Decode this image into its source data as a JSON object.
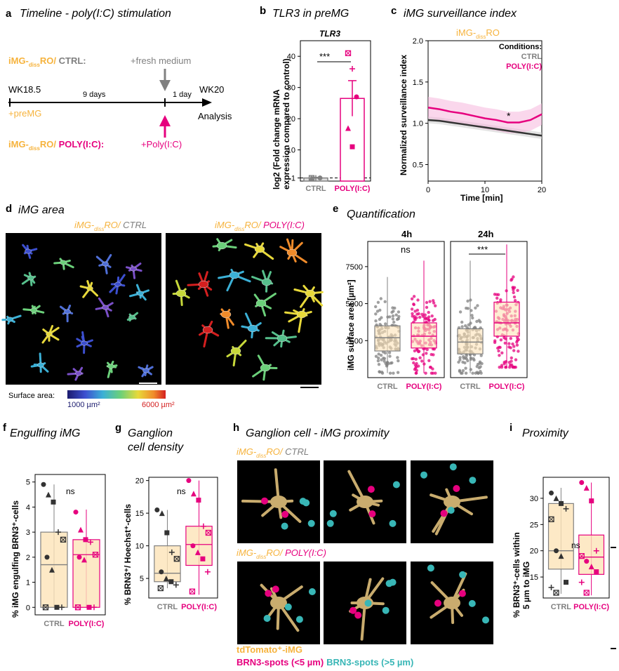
{
  "panels": {
    "a": {
      "letter": "a",
      "title": "Timeline - poly(I:C) stimulation",
      "ctrl_condition": {
        "prefix": "iMG-",
        "sub": "diss",
        "mid": "RO/ ",
        "suffix": "CTRL:"
      },
      "pic_condition": {
        "prefix": "iMG-",
        "sub": "diss",
        "mid": "RO/ ",
        "suffix": "POLY(I:C):"
      },
      "start_label": "WK18.5",
      "end_label": "WK20",
      "premg": "+preMG",
      "days9": "9 days",
      "day1": "1 day",
      "fresh_medium": "+fresh medium",
      "polyic": "+Poly(I:C)",
      "analysis": "Analysis"
    },
    "b": {
      "letter": "b",
      "title": "TLR3 in preMG",
      "chart_title": "TLR3",
      "ylabel_line1": "log2 (Fold change mRNA",
      "ylabel_line2": "expression compared to control)",
      "sig": "***"
    },
    "c": {
      "letter": "c",
      "title": "iMG surveillance index",
      "sample_prefix": "iMG-",
      "sample_sub": "diss",
      "sample_suffix": "RO",
      "ylabel": "Normalized surveillance index",
      "xlabel": "Time [min]",
      "legend_title": "Conditions:",
      "legend_ctrl": "CTRL",
      "legend_pic": "POLY(I:C)",
      "sig": "*"
    },
    "d": {
      "letter": "d",
      "title": "iMG area",
      "left_prefix": "iMG-",
      "left_sub": "diss",
      "left_mid": "RO/ ",
      "left_cond": "CTRL",
      "right_prefix": "iMG-",
      "right_sub": "diss",
      "right_mid": "RO/ ",
      "right_cond": "POLY(I:C)",
      "colorbar_label": "Surface area:",
      "colorbar_min": "1000 µm²",
      "colorbar_max": "6000 µm²"
    },
    "e": {
      "letter": "e",
      "title": "Quantification",
      "ylabel": "iMG surface area [µm²]",
      "facet_4h": "4h",
      "facet_24h": "24h",
      "sig_4h": "ns",
      "sig_24h": "***"
    },
    "f": {
      "letter": "f",
      "title": "Engulfing iMG",
      "ylabel": "% iMG engulfing BRN3⁺-cells",
      "sig": "ns"
    },
    "g": {
      "letter": "g",
      "title_line1": "Ganglion",
      "title_line2": "cell density",
      "ylabel": "% BRN3⁺/ Hoechst⁺-cells",
      "sig": "ns"
    },
    "h": {
      "letter": "h",
      "title": "Ganglion cell - iMG proximity",
      "ctrl_prefix": "iMG-",
      "ctrl_sub": "diss",
      "ctrl_mid": "RO/ ",
      "ctrl_cond": "CTRL",
      "pic_prefix": "iMG-",
      "pic_sub": "diss",
      "pic_mid": "RO/ ",
      "pic_cond": "POLY(I:C)",
      "legend_tdtomato": "tdTomato⁺-iMG",
      "legend_brn3_near": "BRN3-spots (<5 µm)",
      "legend_brn3_far": "BRN3-spots (>5 µm)"
    },
    "i": {
      "letter": "i",
      "title": "Proximity",
      "ylabel_line1": "% BRN3⁺-cells within",
      "ylabel_line2": "5 µm to iMG",
      "sig": "ns"
    }
  },
  "colors": {
    "ctrl": "#808080",
    "polyic": "#e6007e",
    "orange": "#f6b33d",
    "teal": "#38b6b6",
    "box_fill": "#fde3b8"
  },
  "chart_data": [
    {
      "id": "b",
      "type": "bar",
      "categories": [
        "CTRL",
        "POLY(I:C)"
      ],
      "values": [
        1,
        26.5
      ],
      "errors": [
        0.2,
        5.7
      ],
      "points": [
        [
          1,
          1,
          1,
          1
        ],
        [
          41,
          36,
          27,
          17,
          11
        ]
      ],
      "ylim": [
        0,
        45
      ],
      "yticks": [
        1,
        10,
        20,
        30,
        40
      ],
      "reference_line": 1,
      "xlabel": "",
      "ylabel": "log2 (Fold change mRNA expression compared to control)",
      "title": "TLR3"
    },
    {
      "id": "c",
      "type": "line",
      "x": [
        0,
        2,
        4,
        6,
        8,
        10,
        12,
        14,
        16,
        18,
        20
      ],
      "series": [
        {
          "name": "CTRL",
          "values": [
            1.04,
            1.03,
            1.01,
            0.99,
            0.97,
            0.95,
            0.93,
            0.91,
            0.89,
            0.87,
            0.85
          ]
        },
        {
          "name": "POLY(I:C)",
          "values": [
            1.19,
            1.17,
            1.14,
            1.12,
            1.09,
            1.06,
            1.04,
            1.01,
            1.01,
            1.04,
            1.11
          ]
        }
      ],
      "xlim": [
        0,
        20
      ],
      "ylim": [
        0.3,
        2.0
      ],
      "xticks": [
        0,
        10,
        20
      ],
      "yticks": [
        0.5,
        1.0,
        1.5,
        2.0
      ],
      "xlabel": "Time [min]",
      "ylabel": "Normalized surveillance index",
      "legend": "top-right"
    },
    {
      "id": "e",
      "type": "box",
      "facets": [
        "4h",
        "24h"
      ],
      "categories": [
        "CTRL",
        "POLY(I:C)"
      ],
      "yticks": [
        2500,
        5000,
        7500
      ],
      "ylim": [
        0,
        9200
      ],
      "boxes": {
        "4h": [
          {
            "group": "CTRL",
            "min": 300,
            "q1": 1800,
            "median": 2700,
            "q3": 3500,
            "max": 6800
          },
          {
            "group": "POLY(I:C)",
            "min": 300,
            "q1": 2000,
            "median": 2800,
            "q3": 3700,
            "max": 7900
          }
        ],
        "24h": [
          {
            "group": "CTRL",
            "min": 300,
            "q1": 1600,
            "median": 2400,
            "q3": 3300,
            "max": 7900
          },
          {
            "group": "POLY(I:C)",
            "min": 700,
            "q1": 2800,
            "median": 3700,
            "q3": 5100,
            "max": 9000
          }
        ]
      },
      "ylabel": "iMG surface area [µm²]"
    },
    {
      "id": "f",
      "type": "box",
      "categories": [
        "CTRL",
        "POLY(I:C)"
      ],
      "ylim": [
        -0.3,
        5.3
      ],
      "yticks": [
        0,
        1,
        2,
        3,
        4,
        5
      ],
      "boxes": [
        {
          "group": "CTRL",
          "min": 0,
          "q1": 0,
          "median": 1.7,
          "q3": 3.0,
          "max": 4.9
        },
        {
          "group": "POLY(I:C)",
          "min": 0,
          "q1": 0,
          "median": 2.1,
          "q3": 2.7,
          "max": 3.9
        }
      ],
      "points": [
        [
          4.9,
          4.5,
          4.2,
          3.0,
          2.7,
          2.0,
          1.5,
          0,
          0,
          0
        ],
        [
          3.8,
          3.1,
          2.7,
          2.6,
          2.1,
          2.0,
          1.9,
          0,
          0,
          0
        ]
      ],
      "ylabel": "% iMG engulfing BRN3⁺-cells"
    },
    {
      "id": "g",
      "type": "box",
      "categories": [
        "CTRL",
        "POLY(I:C)"
      ],
      "ylim": [
        2,
        20.5
      ],
      "yticks": [
        5,
        10,
        15,
        20
      ],
      "boxes": [
        {
          "group": "CTRL",
          "min": 3.5,
          "q1": 4.5,
          "median": 5.8,
          "q3": 10.0,
          "max": 15.5
        },
        {
          "group": "POLY(I:C)",
          "min": 2.5,
          "q1": 7.0,
          "median": 10.2,
          "q3": 13.0,
          "max": 20
        }
      ],
      "points": [
        [
          15.5,
          15,
          12,
          9,
          8,
          6,
          5,
          4.5,
          4,
          3.5
        ],
        [
          20,
          18,
          17,
          13,
          12,
          10,
          9,
          8,
          6,
          3
        ]
      ],
      "ylabel": "% BRN3⁺/ Hoechst⁺-cells"
    },
    {
      "id": "i",
      "type": "box",
      "categories": [
        "CTRL",
        "POLY(I:C)"
      ],
      "ylim": [
        11,
        34
      ],
      "yticks": [
        15,
        20,
        25,
        30
      ],
      "boxes": [
        {
          "group": "CTRL",
          "min": 11.8,
          "q1": 16.5,
          "median": 20.0,
          "q3": 29.0,
          "max": 32.0
        },
        {
          "group": "POLY(I:C)",
          "min": 11.5,
          "q1": 15.5,
          "median": 18.8,
          "q3": 23.0,
          "max": 33.0
        }
      ],
      "points": [
        [
          31,
          30,
          29,
          28,
          26,
          20,
          19,
          14,
          13,
          12
        ],
        [
          33,
          32,
          29.5,
          20,
          19,
          18,
          17,
          16,
          14,
          12
        ]
      ],
      "ylabel": "% BRN3⁺-cells within 5 µm to iMG"
    }
  ]
}
